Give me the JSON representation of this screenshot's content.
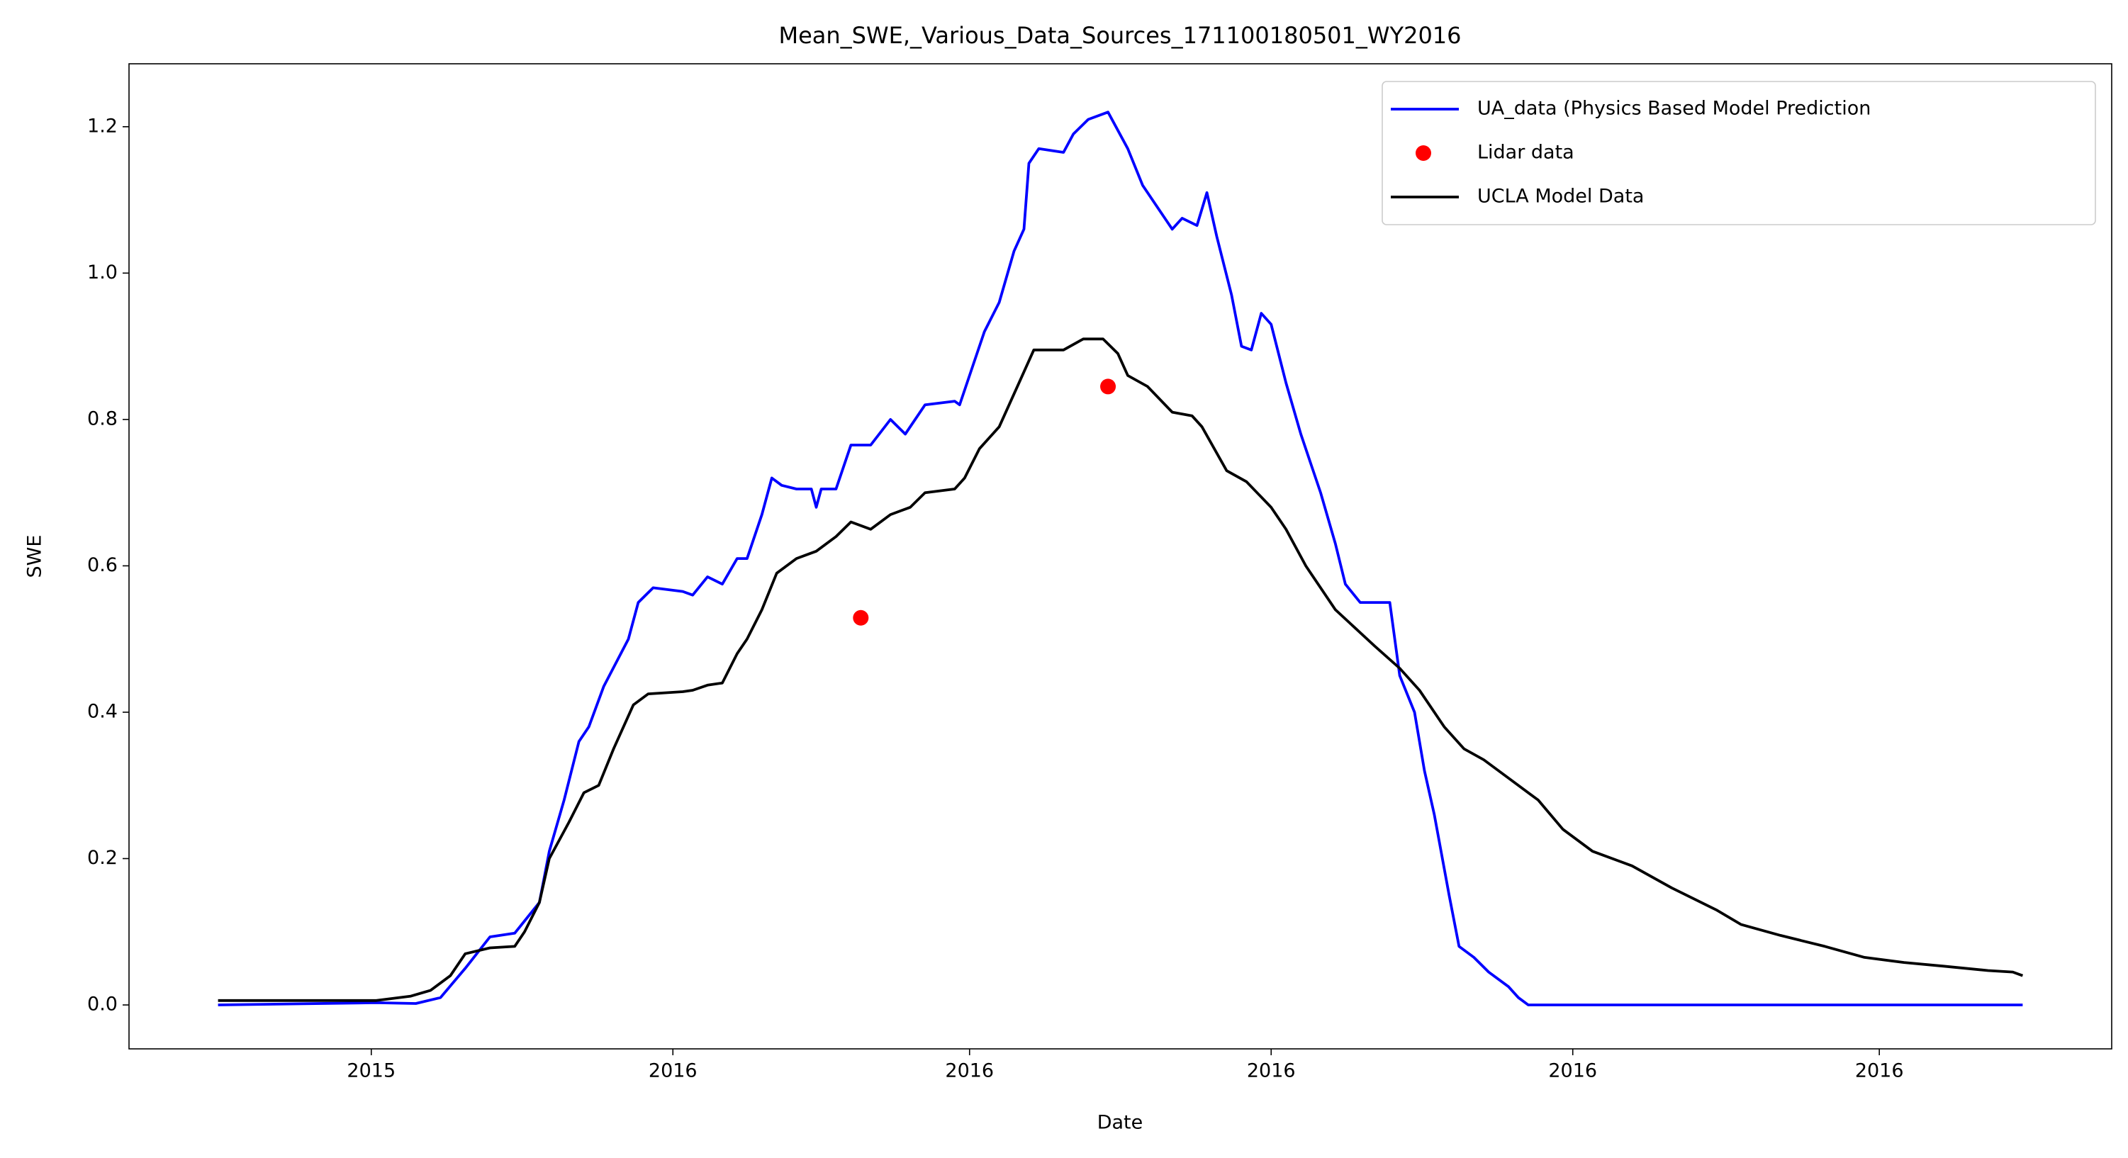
{
  "chart_data": {
    "type": "line",
    "title": "Mean_SWE,_Various_Data_Sources_171100180501_WY2016",
    "x_label": "Date",
    "y_label": "SWE",
    "xlim": [
      -18,
      383
    ],
    "ylim": [
      -0.06,
      1.286
    ],
    "xticks": [
      {
        "value": 31,
        "label": "2015"
      },
      {
        "value": 92,
        "label": "2016"
      },
      {
        "value": 152,
        "label": "2016"
      },
      {
        "value": 213,
        "label": "2016"
      },
      {
        "value": 274,
        "label": "2016"
      },
      {
        "value": 336,
        "label": "2016"
      }
    ],
    "yticks": [
      {
        "value": 0,
        "label": "0.0"
      },
      0.2,
      0.4,
      0.6,
      0.8,
      {
        "value": 1,
        "label": "1.0"
      },
      1.2
    ],
    "legend": "upper right",
    "series": [
      {
        "name": "UA_data (Physics Based Model Prediction",
        "color": "#0000ff",
        "style": "line",
        "x": [
          0,
          32,
          40,
          45,
          50,
          55,
          60,
          65,
          67,
          70,
          73,
          75,
          78,
          83,
          85,
          88,
          94,
          96,
          99,
          102,
          105,
          107,
          110,
          112,
          114,
          117,
          120,
          121,
          122,
          125,
          128,
          132,
          136,
          139,
          143,
          149,
          150,
          153,
          155,
          158,
          161,
          163,
          164,
          166,
          171,
          173,
          176,
          180,
          184,
          187,
          190,
          193,
          195,
          198,
          200,
          202,
          205,
          207,
          209,
          211,
          213,
          216,
          219,
          221,
          223,
          226,
          228,
          231,
          233,
          237,
          239,
          242,
          244,
          246,
          249,
          251,
          254,
          257,
          261,
          263,
          265,
          365
        ],
        "values": [
          0,
          0.003,
          0.002,
          0.01,
          0.05,
          0.093,
          0.098,
          0.14,
          0.21,
          0.28,
          0.36,
          0.38,
          0.435,
          0.5,
          0.55,
          0.57,
          0.565,
          0.56,
          0.585,
          0.575,
          0.61,
          0.61,
          0.67,
          0.72,
          0.71,
          0.705,
          0.705,
          0.68,
          0.705,
          0.705,
          0.765,
          0.765,
          0.8,
          0.78,
          0.82,
          0.825,
          0.82,
          0.88,
          0.92,
          0.96,
          1.03,
          1.06,
          1.15,
          1.17,
          1.165,
          1.19,
          1.21,
          1.22,
          1.17,
          1.12,
          1.09,
          1.06,
          1.075,
          1.065,
          1.11,
          1.05,
          0.97,
          0.9,
          0.895,
          0.945,
          0.93,
          0.85,
          0.78,
          0.74,
          0.7,
          0.63,
          0.575,
          0.55,
          0.55,
          0.55,
          0.45,
          0.4,
          0.32,
          0.26,
          0.15,
          0.08,
          0.065,
          0.045,
          0.025,
          0.01,
          0,
          0
        ]
      },
      {
        "name": "Lidar data",
        "color": "#ff0000",
        "style": "points",
        "x": [
          130,
          180
        ],
        "values": [
          0.529,
          0.845
        ]
      },
      {
        "name": "UCLA Model Data",
        "color": "#000000",
        "style": "line",
        "x": [
          0,
          32,
          39,
          43,
          47,
          50,
          55,
          60,
          62,
          65,
          67,
          71,
          74,
          77,
          80,
          84,
          87,
          94,
          96,
          99,
          102,
          105,
          107,
          110,
          113,
          117,
          121,
          125,
          128,
          132,
          136,
          140,
          143,
          149,
          151,
          154,
          158,
          162,
          165,
          171,
          175,
          179,
          182,
          184,
          188,
          193,
          197,
          199,
          204,
          208,
          213,
          216,
          220,
          226,
          230,
          234,
          239,
          243,
          248,
          252,
          256,
          261,
          267,
          272,
          278,
          286,
          294,
          303,
          308,
          316,
          325,
          333,
          341,
          349,
          358,
          363,
          365
        ],
        "values": [
          0.006,
          0.006,
          0.012,
          0.02,
          0.04,
          0.07,
          0.078,
          0.08,
          0.1,
          0.14,
          0.2,
          0.25,
          0.29,
          0.3,
          0.35,
          0.41,
          0.425,
          0.428,
          0.43,
          0.437,
          0.44,
          0.48,
          0.5,
          0.54,
          0.59,
          0.61,
          0.62,
          0.64,
          0.66,
          0.65,
          0.67,
          0.68,
          0.7,
          0.705,
          0.72,
          0.76,
          0.79,
          0.85,
          0.895,
          0.895,
          0.91,
          0.91,
          0.89,
          0.86,
          0.845,
          0.81,
          0.805,
          0.79,
          0.73,
          0.715,
          0.68,
          0.65,
          0.6,
          0.54,
          0.515,
          0.49,
          0.46,
          0.43,
          0.38,
          0.35,
          0.335,
          0.31,
          0.28,
          0.24,
          0.21,
          0.19,
          0.16,
          0.13,
          0.11,
          0.095,
          0.08,
          0.065,
          0.058,
          0.053,
          0.047,
          0.045,
          0.04
        ]
      }
    ]
  }
}
